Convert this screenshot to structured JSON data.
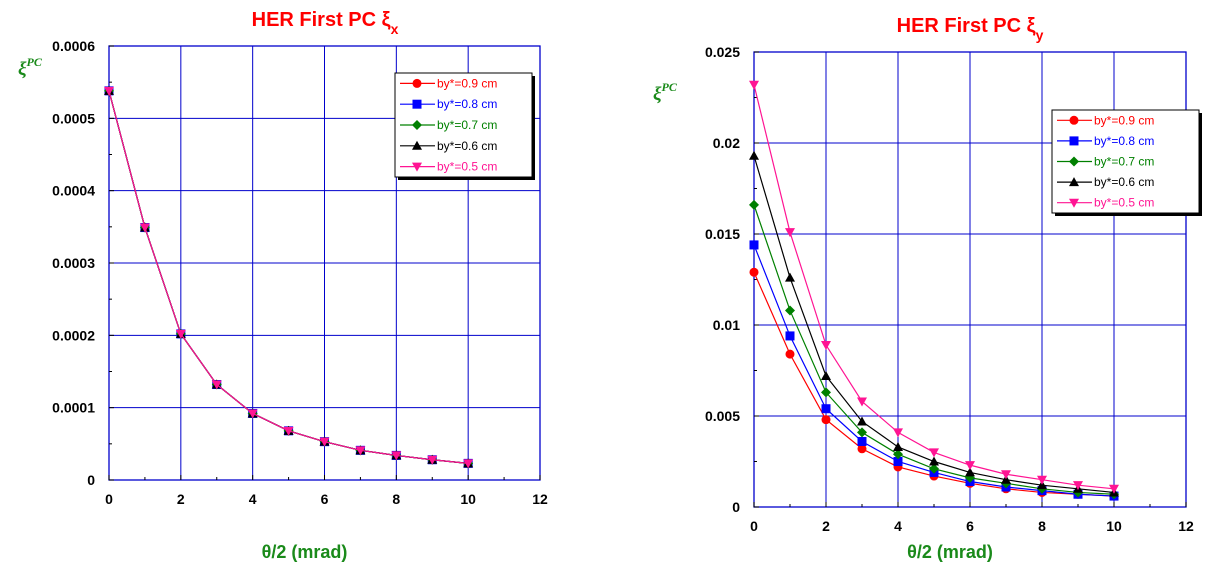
{
  "chart_data": [
    {
      "type": "line",
      "title": "HER First PC ",
      "title_symbol": "ξ",
      "title_subscript": "x",
      "xlabel": "θ/2 (mrad)",
      "ylabel": "ξ",
      "ylabel_superscript": "PC",
      "xlim": [
        0,
        12
      ],
      "ylim": [
        0,
        0.0006
      ],
      "x_ticks": [
        0,
        2,
        4,
        6,
        8,
        10,
        12
      ],
      "y_ticks": [
        0,
        0.0001,
        0.0002,
        0.0003,
        0.0004,
        0.0005,
        0.0006
      ],
      "x_tick_labels": [
        "0",
        "2",
        "4",
        "6",
        "8",
        "10",
        "12"
      ],
      "y_tick_labels": [
        "0",
        "0.0001",
        "0.0002",
        "0.0003",
        "0.0004",
        "0.0005",
        "0.0006"
      ],
      "grid": true,
      "legend_position": "top-right",
      "x": [
        0,
        1,
        2,
        3,
        4,
        5,
        6,
        7,
        8,
        9,
        10
      ],
      "series": [
        {
          "name": "by*=0.9 cm",
          "color": "#ff0000",
          "marker": "circle",
          "values": [
            0.000538,
            0.000349,
            0.000202,
            0.000132,
            9.2e-05,
            6.8e-05,
            5.3e-05,
            4.1e-05,
            3.4e-05,
            2.8e-05,
            2.3e-05
          ]
        },
        {
          "name": "by*=0.8 cm",
          "color": "#0000ff",
          "marker": "square",
          "values": [
            0.000538,
            0.000349,
            0.000202,
            0.000132,
            9.2e-05,
            6.8e-05,
            5.3e-05,
            4.1e-05,
            3.4e-05,
            2.8e-05,
            2.3e-05
          ]
        },
        {
          "name": "by*=0.7 cm",
          "color": "#008000",
          "marker": "diamond",
          "values": [
            0.000538,
            0.000349,
            0.000202,
            0.000132,
            9.2e-05,
            6.8e-05,
            5.3e-05,
            4.1e-05,
            3.4e-05,
            2.8e-05,
            2.3e-05
          ]
        },
        {
          "name": "by*=0.6 cm",
          "color": "#000000",
          "marker": "triangle-up",
          "values": [
            0.000538,
            0.000349,
            0.000202,
            0.000132,
            9.2e-05,
            6.8e-05,
            5.3e-05,
            4.1e-05,
            3.4e-05,
            2.8e-05,
            2.3e-05
          ]
        },
        {
          "name": "by*=0.5 cm",
          "color": "#ff1493",
          "marker": "triangle-down",
          "values": [
            0.000538,
            0.000349,
            0.000202,
            0.000132,
            9.2e-05,
            6.8e-05,
            5.3e-05,
            4.1e-05,
            3.4e-05,
            2.8e-05,
            2.3e-05
          ]
        }
      ]
    },
    {
      "type": "line",
      "title": "HER First PC ",
      "title_symbol": "ξ",
      "title_subscript": "y",
      "xlabel": "θ/2 (mrad)",
      "ylabel": "ξ",
      "ylabel_superscript": "PC",
      "xlim": [
        0,
        12
      ],
      "ylim": [
        0,
        0.025
      ],
      "x_ticks": [
        0,
        2,
        4,
        6,
        8,
        10,
        12
      ],
      "y_ticks": [
        0,
        0.005,
        0.01,
        0.015,
        0.02,
        0.025
      ],
      "x_tick_labels": [
        "0",
        "2",
        "4",
        "6",
        "8",
        "10",
        "12"
      ],
      "y_tick_labels": [
        "0",
        "0.005",
        "0.01",
        "0.015",
        "0.02",
        "0.025"
      ],
      "grid": true,
      "legend_position": "top-right",
      "x": [
        0,
        1,
        2,
        3,
        4,
        5,
        6,
        7,
        8,
        9,
        10
      ],
      "series": [
        {
          "name": "by*=0.9 cm",
          "color": "#ff0000",
          "marker": "circle",
          "values": [
            0.0129,
            0.0084,
            0.0048,
            0.0032,
            0.0022,
            0.0017,
            0.0013,
            0.001,
            0.0008,
            0.0007,
            0.0006
          ]
        },
        {
          "name": "by*=0.8 cm",
          "color": "#0000ff",
          "marker": "square",
          "values": [
            0.0144,
            0.0094,
            0.0054,
            0.0036,
            0.0025,
            0.0019,
            0.0014,
            0.0011,
            0.0009,
            0.0007,
            0.0006
          ]
        },
        {
          "name": "by*=0.7 cm",
          "color": "#008000",
          "marker": "diamond",
          "values": [
            0.0166,
            0.0108,
            0.0063,
            0.0041,
            0.0029,
            0.0021,
            0.0016,
            0.0013,
            0.001,
            0.0008,
            0.0007
          ]
        },
        {
          "name": "by*=0.6 cm",
          "color": "#000000",
          "marker": "triangle-up",
          "values": [
            0.0193,
            0.0126,
            0.0072,
            0.0047,
            0.0033,
            0.0025,
            0.0019,
            0.0015,
            0.0012,
            0.001,
            0.0008
          ]
        },
        {
          "name": "by*=0.5 cm",
          "color": "#ff1493",
          "marker": "triangle-down",
          "values": [
            0.0232,
            0.0151,
            0.0089,
            0.0058,
            0.0041,
            0.003,
            0.0023,
            0.0018,
            0.0015,
            0.0012,
            0.001
          ]
        }
      ]
    }
  ]
}
